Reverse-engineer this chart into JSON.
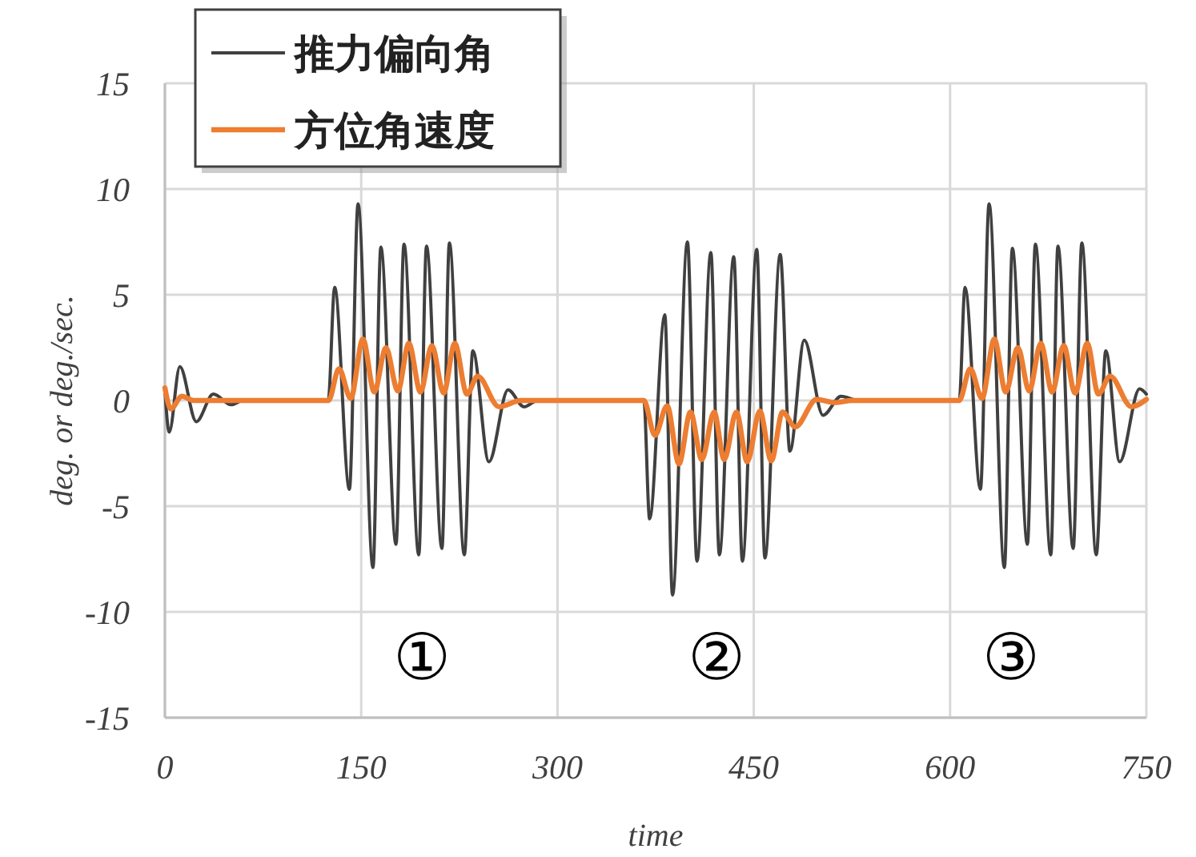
{
  "chart_data": {
    "type": "line",
    "xlabel": "time",
    "ylabel": "deg. or deg./sec.",
    "xlim": [
      0,
      750
    ],
    "ylim": [
      -15,
      15
    ],
    "xticks": [
      0,
      150,
      300,
      450,
      600,
      750
    ],
    "yticks": [
      -15,
      -10,
      -5,
      0,
      5,
      10,
      15
    ],
    "grid": true,
    "legend": "top left",
    "line_style": "solid",
    "marker": "none",
    "series": [
      {
        "name": "推力偏向角",
        "color": "#404040",
        "x": [
          0,
          3.3,
          11.4,
          24,
          37,
          50.6,
          60,
          124.8,
          129.7,
          141,
          147.6,
          159,
          165,
          176.6,
          182.7,
          194,
          199.9,
          211.7,
          217.4,
          228.8,
          235.3,
          247.6,
          262.2,
          274.5,
          285,
          366,
          370.4,
          382,
          387.9,
          399.3,
          406.6,
          417.2,
          423.7,
          434.7,
          441.3,
          452.3,
          458.5,
          470.2,
          477.6,
          488.6,
          502.9,
          516.7,
          530,
          607,
          611.4,
          623.2,
          629.8,
          641.5,
          647.6,
          659.1,
          665.2,
          677,
          682.4,
          694.1,
          700.7,
          711.7,
          719,
          729.6,
          744.8,
          750
        ],
        "values": [
          0.5,
          -1.5,
          1.6,
          -1.0,
          0.3,
          -0.2,
          0,
          0,
          5.35,
          -4.2,
          9.3,
          -7.9,
          7.25,
          -6.8,
          7.4,
          -7.3,
          7.3,
          -7.0,
          7.45,
          -7.3,
          2.35,
          -2.9,
          0.5,
          -0.3,
          0,
          0,
          -5.6,
          4.05,
          -9.2,
          7.5,
          -7.6,
          7.0,
          -7.3,
          6.8,
          -7.6,
          7.15,
          -7.45,
          6.9,
          -2.4,
          2.85,
          -0.7,
          0.2,
          0,
          0,
          5.35,
          -4.2,
          9.3,
          -7.9,
          7.2,
          -6.8,
          7.4,
          -7.3,
          7.3,
          -7.0,
          7.45,
          -7.3,
          2.35,
          -2.9,
          0.55,
          0.3
        ]
      },
      {
        "name": "方位角速度",
        "color": "#ed7d31",
        "x": [
          0,
          4.5,
          13,
          22,
          125,
          133,
          142,
          151.3,
          160,
          168.9,
          178,
          186.4,
          195.3,
          204,
          213,
          221.5,
          230.8,
          239,
          255.3,
          272,
          366,
          374.4,
          383.8,
          392.8,
          401.6,
          410.3,
          419.7,
          427.4,
          436.7,
          445,
          454.6,
          463.4,
          472,
          481.7,
          498,
          512,
          525,
          607,
          615.4,
          624.4,
          633.8,
          642.5,
          651.8,
          660.5,
          669.3,
          678,
          686.8,
          695.5,
          704.8,
          713.3,
          722.3,
          738.6,
          750
        ],
        "values": [
          0.6,
          -0.4,
          0.2,
          0,
          0,
          1.5,
          0.1,
          2.9,
          0.4,
          2.5,
          0.45,
          2.7,
          0.4,
          2.6,
          0.35,
          2.7,
          0.3,
          1.15,
          -0.3,
          0,
          0,
          -1.65,
          -0.25,
          -3.0,
          -0.55,
          -2.8,
          -0.55,
          -2.8,
          -0.55,
          -2.9,
          -0.5,
          -2.85,
          -0.55,
          -1.25,
          0.05,
          -0.1,
          0,
          0,
          1.5,
          0.1,
          2.9,
          0.4,
          2.5,
          0.45,
          2.7,
          0.4,
          2.6,
          0.35,
          2.7,
          0.3,
          1.15,
          -0.3,
          0.05
        ]
      }
    ],
    "annotations": [
      "①",
      "②",
      "③"
    ]
  }
}
